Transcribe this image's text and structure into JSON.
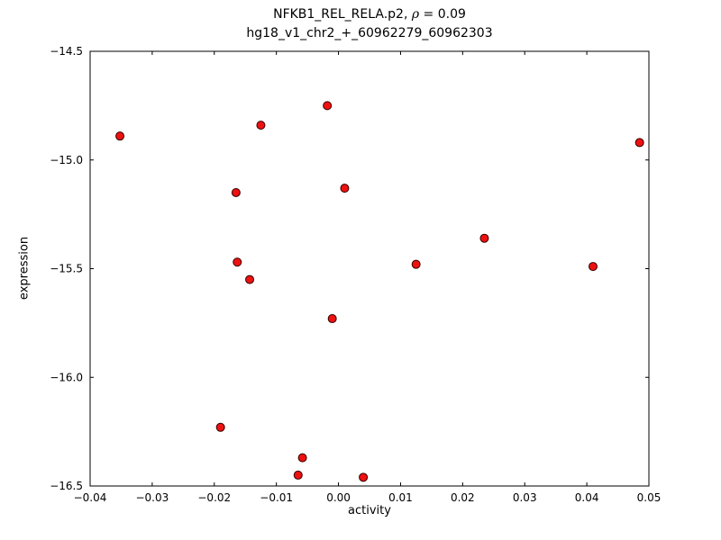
{
  "figure": {
    "title_prefix": "NFKB1_REL_RELA.p2, ",
    "rho_symbol": "ρ",
    "rho_equals": " = ",
    "rho_value": "0.09",
    "subtitle": "hg18_v1_chr2_+_60962279_60962303",
    "xlabel": "activity",
    "ylabel": "expression"
  },
  "chart_data": {
    "type": "scatter",
    "title": "NFKB1_REL_RELA.p2, ρ = 0.09",
    "subtitle": "hg18_v1_chr2_+_60962279_60962303",
    "xlabel": "activity",
    "ylabel": "expression",
    "xlim": [
      -0.04,
      0.05
    ],
    "ylim": [
      -16.5,
      -14.5
    ],
    "x_ticks": [
      -0.04,
      -0.03,
      -0.02,
      -0.01,
      0.0,
      0.01,
      0.02,
      0.03,
      0.04,
      0.05
    ],
    "y_ticks": [
      -16.5,
      -16.0,
      -15.5,
      -15.0,
      -14.5
    ],
    "grid": false,
    "legend_position": "none",
    "marker": {
      "shape": "circle",
      "fill": "#ee1111",
      "edge": "#330000",
      "radius": 4.5
    },
    "points": [
      [
        -0.0352,
        -14.89
      ],
      [
        -0.0125,
        -14.84
      ],
      [
        -0.0018,
        -14.75
      ],
      [
        0.0485,
        -14.92
      ],
      [
        -0.0165,
        -15.15
      ],
      [
        0.001,
        -15.13
      ],
      [
        0.0235,
        -15.36
      ],
      [
        -0.0163,
        -15.47
      ],
      [
        0.0125,
        -15.48
      ],
      [
        0.041,
        -15.49
      ],
      [
        -0.0143,
        -15.55
      ],
      [
        -0.001,
        -15.73
      ],
      [
        -0.019,
        -16.23
      ],
      [
        -0.0058,
        -16.37
      ],
      [
        -0.0065,
        -16.45
      ],
      [
        0.004,
        -16.46
      ]
    ]
  }
}
